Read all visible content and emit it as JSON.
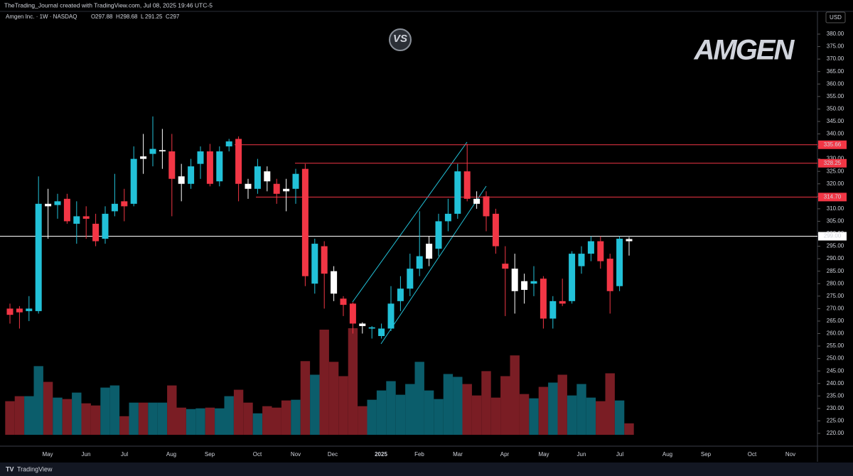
{
  "header": {
    "credit": "TheTrading_Journal created with TradingView.com, Jul 08, 2025 19:46 UTC-5",
    "currency": "USD",
    "brand": "TradingView"
  },
  "logos": {
    "company": "AMGEN",
    "badge": "VS"
  },
  "chart_data": {
    "type": "candlestick",
    "title": "Amgen Inc. · 1W · NASDAQ",
    "ohlc_prefixes": [
      "O",
      "H",
      "L",
      "C"
    ],
    "x_labels": [
      "May",
      "Jun",
      "Jul",
      "Aug",
      "Sep",
      "Oct",
      "Nov",
      "Dec",
      "2025",
      "Feb",
      "Mar",
      "Apr",
      "May",
      "Jun",
      "Jul",
      "Aug",
      "Sep",
      "Oct",
      "Nov"
    ],
    "open": [
      270,
      270,
      269,
      269,
      312,
      311.5,
      314,
      304,
      307,
      304,
      298,
      309,
      313,
      312,
      331,
      332,
      333,
      333,
      323,
      320,
      328,
      333,
      321,
      335,
      338,
      320,
      318,
      325,
      320,
      318,
      318,
      326,
      280,
      295,
      285,
      274,
      272,
      264,
      262,
      259,
      262,
      273,
      278,
      286,
      290,
      294,
      305,
      308,
      325,
      314,
      315,
      308,
      288,
      286,
      281,
      280,
      282,
      266,
      273,
      273,
      287,
      292,
      297,
      290,
      279,
      297.88
    ],
    "high": [
      272,
      271,
      275,
      323,
      318,
      316,
      316,
      313,
      311,
      308,
      311,
      324,
      318,
      335,
      340,
      347,
      342,
      340,
      328,
      330,
      335,
      336,
      335,
      338,
      339,
      322,
      330,
      327,
      322,
      322,
      326,
      328,
      298,
      297,
      287,
      275,
      272.5,
      264.5,
      263,
      264,
      279,
      283,
      292,
      309,
      299,
      308,
      314,
      328,
      336,
      317,
      317,
      310,
      295,
      292,
      284,
      287,
      283,
      275,
      282,
      293,
      295,
      299,
      299,
      292,
      299,
      298.68
    ],
    "low": [
      264,
      262,
      265,
      268,
      298,
      306,
      304,
      296,
      298,
      295,
      296,
      307,
      305,
      311,
      324,
      327,
      326,
      307,
      313,
      318,
      322,
      319,
      319,
      333,
      313,
      314,
      316,
      317,
      312,
      309,
      312,
      279,
      276,
      270,
      273,
      267,
      260,
      260,
      258,
      258,
      261,
      269,
      275,
      283,
      287,
      291,
      301,
      306,
      313,
      310,
      301,
      292,
      267,
      268,
      272,
      275,
      262,
      262,
      271,
      272,
      284,
      289,
      286,
      268,
      277,
      291.25
    ],
    "close": [
      267.5,
      268.5,
      270,
      312,
      311,
      313,
      305,
      307,
      306,
      297,
      308,
      312,
      311,
      330,
      330,
      334,
      333.5,
      322,
      320,
      327,
      333,
      320,
      333,
      337,
      320,
      318,
      327,
      321,
      316,
      317,
      324,
      283,
      296,
      284,
      276,
      271.5,
      264,
      263,
      262.5,
      262,
      272,
      278,
      286,
      291,
      296,
      305,
      308,
      325,
      314,
      312,
      307,
      295,
      286,
      277,
      277.5,
      281,
      266,
      273,
      272,
      292,
      292,
      297,
      289,
      277,
      298,
      297.0
    ],
    "colors": [
      "#f23645",
      "#f23645",
      "#22c1d8",
      "#22c1d8",
      "#ffffff",
      "#22c1d8",
      "#f23645",
      "#22c1d8",
      "#f23645",
      "#f23645",
      "#22c1d8",
      "#22c1d8",
      "#f23645",
      "#22c1d8",
      "#ffffff",
      "#22c1d8",
      "#ffffff",
      "#f23645",
      "#ffffff",
      "#22c1d8",
      "#22c1d8",
      "#f23645",
      "#22c1d8",
      "#22c1d8",
      "#f23645",
      "#ffffff",
      "#22c1d8",
      "#ffffff",
      "#f23645",
      "#ffffff",
      "#22c1d8",
      "#f23645",
      "#22c1d8",
      "#f23645",
      "#ffffff",
      "#f23645",
      "#f23645",
      "#ffffff",
      "#22c1d8",
      "#22c1d8",
      "#22c1d8",
      "#22c1d8",
      "#22c1d8",
      "#22c1d8",
      "#ffffff",
      "#22c1d8",
      "#22c1d8",
      "#22c1d8",
      "#f23645",
      "#ffffff",
      "#f23645",
      "#f23645",
      "#f23645",
      "#ffffff",
      "#ffffff",
      "#22c1d8",
      "#f23645",
      "#22c1d8",
      "#f23645",
      "#22c1d8",
      "#22c1d8",
      "#22c1d8",
      "#f23645",
      "#f23645",
      "#22c1d8",
      "#ffffff"
    ],
    "volume": [
      4.7,
      5.4,
      5.4,
      9.6,
      7.4,
      5.2,
      5.0,
      5.9,
      4.4,
      4.1,
      6.6,
      6.9,
      2.6,
      4.5,
      4.5,
      4.5,
      4.5,
      6.9,
      3.8,
      3.6,
      3.7,
      3.8,
      3.7,
      5.4,
      6.3,
      4.5,
      3.0,
      4.0,
      3.8,
      4.8,
      4.9,
      10.3,
      8.4,
      14.7,
      10.2,
      8.2,
      14.9,
      4.0,
      4.9,
      6.2,
      7.5,
      5.6,
      7.1,
      10.2,
      6.2,
      5.0,
      8.5,
      8.1,
      7.1,
      5.5,
      8.9,
      5.2,
      8.2,
      11.1,
      5.7,
      5.1,
      6.7,
      7.3,
      8.4,
      5.5,
      7.1,
      5.2,
      4.7,
      8.6,
      4.8,
      1.6
    ],
    "volume_up_color": "#0b5d6b",
    "volume_down_color": "#7a1d24",
    "hlines": [
      {
        "value": 335.66,
        "label": "335.66",
        "color": "#f23645"
      },
      {
        "value": 328.25,
        "label": "328.25",
        "color": "#f23645"
      },
      {
        "value": 314.7,
        "label": "314.70",
        "color": "#f23645"
      },
      {
        "value": 299,
        "label": "299.00",
        "color": "#ffffff"
      }
    ],
    "ylim": [
      220,
      380
    ],
    "yticks": [
      {
        "value": 220,
        "label": "220.00"
      },
      {
        "value": 225,
        "label": "225.00"
      },
      {
        "value": 230,
        "label": "230.00"
      },
      {
        "value": 235,
        "label": "235.00"
      },
      {
        "value": 240,
        "label": "240.00"
      },
      {
        "value": 245,
        "label": "245.00"
      },
      {
        "value": 250,
        "label": "250.00"
      },
      {
        "value": 255,
        "label": "255.00"
      },
      {
        "value": 260,
        "label": "260.00"
      },
      {
        "value": 265,
        "label": "265.00"
      },
      {
        "value": 270,
        "label": "270.00"
      },
      {
        "value": 275,
        "label": "275.00"
      },
      {
        "value": 280,
        "label": "280.00"
      },
      {
        "value": 285,
        "label": "285.00"
      },
      {
        "value": 290,
        "label": "290.00"
      },
      {
        "value": 295,
        "label": "295.00"
      },
      {
        "value": 300,
        "label": "300.00"
      },
      {
        "value": 305,
        "label": "305.00"
      },
      {
        "value": 310,
        "label": "310.00"
      },
      {
        "value": 315,
        "label": "315.00"
      },
      {
        "value": 320,
        "label": "320.00"
      },
      {
        "value": 325,
        "label": "325.00"
      },
      {
        "value": 330,
        "label": "330.00"
      },
      {
        "value": 335,
        "label": "335.00"
      },
      {
        "value": 340,
        "label": "340.00"
      },
      {
        "value": 345,
        "label": "345.00"
      },
      {
        "value": 350,
        "label": "350.00"
      },
      {
        "value": 355,
        "label": "355.00"
      },
      {
        "value": 360,
        "label": "360.00"
      },
      {
        "value": 365,
        "label": "365.00"
      },
      {
        "value": 370,
        "label": "370.00"
      },
      {
        "value": 375,
        "label": "375.00"
      },
      {
        "value": 380,
        "label": "380.00"
      }
    ],
    "grid": false
  }
}
